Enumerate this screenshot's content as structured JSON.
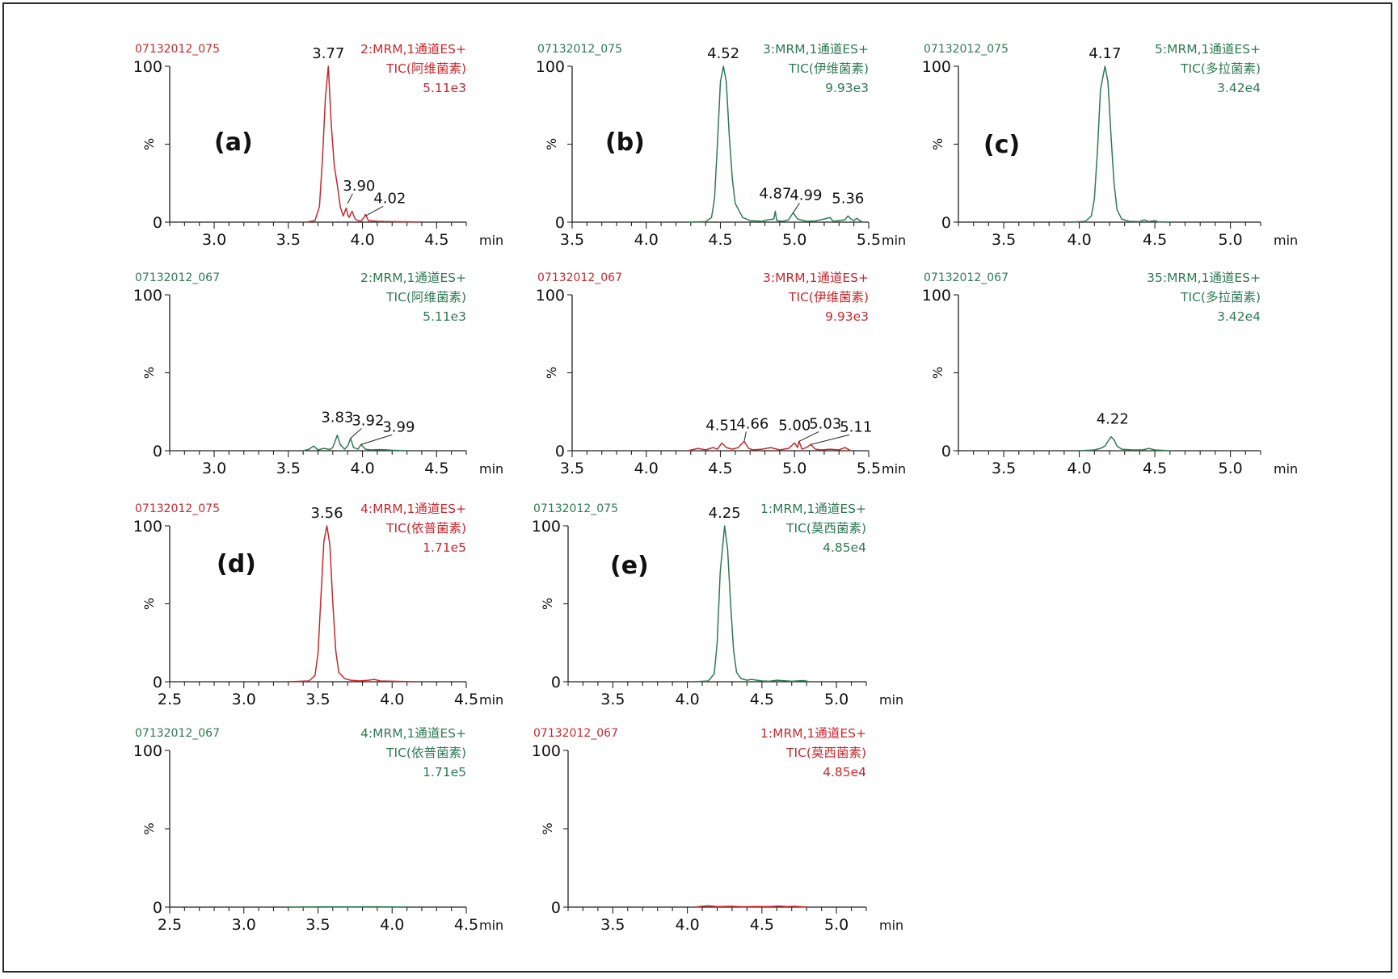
{
  "colors": {
    "red": "#c8282d",
    "green": "#2e7a55"
  },
  "chart_data": [
    {
      "type": "line",
      "id": "a-top",
      "color": "red",
      "sample": "07132012_075",
      "header": [
        "2:MRM,1通道ES+",
        "TIC(阿维菌素)",
        "5.11e3"
      ],
      "letter": "(a)",
      "xlim": [
        2.7,
        4.7
      ],
      "ylim": [
        0,
        100
      ],
      "xticks": [
        "3.0",
        "3.5",
        "4.0",
        "4.5"
      ],
      "xunit": "min",
      "yticks": [
        "0",
        "%",
        "100"
      ],
      "peaks": [
        {
          "label": "3.77",
          "x": 3.77,
          "y": 100
        },
        {
          "label": "3.90",
          "x": 3.9,
          "y": 12
        },
        {
          "label": "4.02",
          "x": 4.02,
          "y": 4
        }
      ],
      "x": [
        3.62,
        3.68,
        3.71,
        3.73,
        3.75,
        3.77,
        3.79,
        3.81,
        3.83,
        3.85,
        3.87,
        3.89,
        3.9,
        3.91,
        3.93,
        3.95,
        3.97,
        3.99,
        4.01,
        4.02,
        4.04,
        4.1,
        4.2,
        4.3,
        4.38
      ],
      "y": [
        0,
        1,
        10,
        40,
        80,
        100,
        62,
        36,
        24,
        10,
        4,
        9,
        5,
        3,
        7,
        2,
        1,
        0.5,
        3,
        5,
        1,
        0.5,
        0.3,
        0.2,
        0
      ]
    },
    {
      "type": "line",
      "id": "b-top",
      "color": "green",
      "sample": "07132012_075",
      "header": [
        "3:MRM,1通道ES+",
        "TIC(伊维菌素)",
        "9.93e3"
      ],
      "letter": "(b)",
      "xlim": [
        3.5,
        5.5
      ],
      "ylim": [
        0,
        100
      ],
      "xticks": [
        "3.5",
        "4.0",
        "4.5",
        "5.0",
        "5.5"
      ],
      "xunit": "min",
      "yticks": [
        "0",
        "%",
        "100"
      ],
      "peaks": [
        {
          "label": "4.52",
          "x": 4.52,
          "y": 100
        },
        {
          "label": "4.87",
          "x": 4.87,
          "y": 7
        },
        {
          "label": "4.99",
          "x": 4.99,
          "y": 6
        },
        {
          "label": "5.36",
          "x": 5.36,
          "y": 4
        }
      ],
      "x": [
        4.28,
        4.4,
        4.44,
        4.46,
        4.48,
        4.5,
        4.52,
        4.54,
        4.56,
        4.58,
        4.6,
        4.65,
        4.7,
        4.78,
        4.82,
        4.86,
        4.87,
        4.88,
        4.92,
        4.96,
        4.99,
        5.02,
        5.08,
        5.14,
        5.2,
        5.24,
        5.26,
        5.3,
        5.34,
        5.36,
        5.38,
        5.4,
        5.42,
        5.44,
        5.46
      ],
      "y": [
        0,
        0.3,
        3,
        15,
        50,
        90,
        100,
        90,
        55,
        28,
        12,
        3,
        1,
        0.5,
        1.5,
        2,
        7,
        1,
        0.5,
        1.5,
        6,
        2,
        0.5,
        0.8,
        2,
        3,
        0.5,
        1,
        1.5,
        4,
        2,
        1,
        2.5,
        1,
        0
      ]
    },
    {
      "type": "line",
      "id": "c-top",
      "color": "green",
      "sample": "07132012_075",
      "header": [
        "5:MRM,1通道ES+",
        "TIC(多拉菌素)",
        "3.42e4"
      ],
      "letter": "(c)",
      "xlim": [
        3.2,
        5.2
      ],
      "ylim": [
        0,
        100
      ],
      "xticks": [
        "3.5",
        "4.0",
        "4.5",
        "5.0"
      ],
      "xunit": "min",
      "yticks": [
        "0",
        "%",
        "100"
      ],
      "peaks": [
        {
          "label": "4.17",
          "x": 4.17,
          "y": 100
        }
      ],
      "x": [
        3.95,
        4.04,
        4.08,
        4.1,
        4.12,
        4.14,
        4.17,
        4.19,
        4.21,
        4.23,
        4.25,
        4.28,
        4.33,
        4.4,
        4.43,
        4.46,
        4.5,
        4.52,
        4.6
      ],
      "y": [
        0,
        0.5,
        4,
        15,
        45,
        85,
        100,
        90,
        55,
        25,
        8,
        2,
        0.5,
        0.3,
        1.5,
        0.3,
        1,
        0.2,
        0
      ]
    },
    {
      "type": "line",
      "id": "a-bottom",
      "color": "green",
      "sample": "07132012_067",
      "header": [
        "2:MRM,1通道ES+",
        "TIC(阿维菌素)",
        "5.11e3"
      ],
      "letter": "",
      "xlim": [
        2.7,
        4.7
      ],
      "ylim": [
        0,
        100
      ],
      "xticks": [
        "3.0",
        "3.5",
        "4.0",
        "4.5"
      ],
      "xunit": "min",
      "yticks": [
        "0",
        "%",
        "100"
      ],
      "peaks": [
        {
          "label": "3.83",
          "x": 3.83,
          "y": 10
        },
        {
          "label": "3.92",
          "x": 3.92,
          "y": 8
        },
        {
          "label": "3.99",
          "x": 3.99,
          "y": 4
        }
      ],
      "x": [
        3.6,
        3.64,
        3.67,
        3.7,
        3.74,
        3.78,
        3.8,
        3.83,
        3.85,
        3.88,
        3.9,
        3.92,
        3.94,
        3.97,
        3.99,
        4.02,
        4.06,
        4.12,
        4.2,
        4.3
      ],
      "y": [
        0,
        1,
        3,
        0.5,
        1.5,
        0.8,
        2,
        10,
        4,
        1,
        3,
        8,
        2,
        1,
        4,
        1,
        0.5,
        0.8,
        0.3,
        0
      ]
    },
    {
      "type": "line",
      "id": "b-bottom",
      "color": "red",
      "sample": "07132012_067",
      "header": [
        "3:MRM,1通道ES+",
        "TIC(伊维菌素)",
        "9.93e3"
      ],
      "letter": "",
      "xlim": [
        3.5,
        5.5
      ],
      "ylim": [
        0,
        100
      ],
      "xticks": [
        "3.5",
        "4.0",
        "4.5",
        "5.0",
        "5.5"
      ],
      "xunit": "min",
      "yticks": [
        "0",
        "%",
        "100"
      ],
      "peaks": [
        {
          "label": "4.51",
          "x": 4.51,
          "y": 5
        },
        {
          "label": "4.66",
          "x": 4.66,
          "y": 6
        },
        {
          "label": "5.00",
          "x": 5.0,
          "y": 5
        },
        {
          "label": "5.03",
          "x": 5.03,
          "y": 6
        },
        {
          "label": "5.11",
          "x": 5.11,
          "y": 4
        }
      ],
      "x": [
        4.28,
        4.35,
        4.4,
        4.45,
        4.48,
        4.51,
        4.54,
        4.58,
        4.62,
        4.66,
        4.69,
        4.72,
        4.78,
        4.84,
        4.9,
        4.96,
        5.0,
        5.02,
        5.03,
        5.05,
        5.08,
        5.11,
        5.14,
        5.18,
        5.24,
        5.3,
        5.34,
        5.38
      ],
      "y": [
        0,
        1.5,
        0.5,
        2,
        1,
        5,
        2,
        1,
        2,
        6,
        1.5,
        0.5,
        1,
        2,
        0.5,
        1.5,
        5,
        2,
        6,
        1,
        2,
        4,
        1,
        0.5,
        1,
        0.5,
        2,
        0
      ]
    },
    {
      "type": "line",
      "id": "c-bottom",
      "color": "green",
      "sample": "07132012_067",
      "header": [
        "35:MRM,1通道ES+",
        "TIC(多拉菌素)",
        "3.42e4"
      ],
      "letter": "",
      "xlim": [
        3.2,
        5.2
      ],
      "ylim": [
        0,
        100
      ],
      "xticks": [
        "3.5",
        "4.0",
        "4.5",
        "5.0"
      ],
      "xunit": "min",
      "yticks": [
        "0",
        "%",
        "100"
      ],
      "peaks": [
        {
          "label": "4.22",
          "x": 4.22,
          "y": 9
        }
      ],
      "x": [
        4.0,
        4.1,
        4.14,
        4.17,
        4.19,
        4.21,
        4.23,
        4.25,
        4.28,
        4.35,
        4.42,
        4.46,
        4.5,
        4.6
      ],
      "y": [
        0,
        0.5,
        1.5,
        3,
        6,
        9,
        7,
        3,
        1,
        0.5,
        0.5,
        1.5,
        0.5,
        0
      ]
    },
    {
      "type": "line",
      "id": "d-top",
      "color": "red",
      "sample": "07132012_075",
      "header": [
        "4:MRM,1通道ES+",
        "TIC(依普菌素)",
        "1.71e5"
      ],
      "letter": "(d)",
      "xlim": [
        2.5,
        4.5
      ],
      "ylim": [
        0,
        100
      ],
      "xticks": [
        "2.5",
        "3.0",
        "3.5",
        "4.0",
        "4.5"
      ],
      "xunit": "min",
      "yticks": [
        "0",
        "%",
        "100"
      ],
      "peaks": [
        {
          "label": "3.56",
          "x": 3.56,
          "y": 100
        }
      ],
      "x": [
        3.3,
        3.44,
        3.48,
        3.5,
        3.52,
        3.54,
        3.56,
        3.58,
        3.6,
        3.62,
        3.64,
        3.68,
        3.72,
        3.78,
        3.84,
        3.88,
        3.92,
        4.0,
        4.15
      ],
      "y": [
        0,
        0.5,
        4,
        18,
        55,
        90,
        100,
        88,
        50,
        20,
        6,
        2,
        1,
        0.5,
        1,
        1.5,
        0.5,
        0.3,
        0
      ]
    },
    {
      "type": "line",
      "id": "e-top",
      "color": "green",
      "sample": "07132012_075",
      "header": [
        "1:MRM,1通道ES+",
        "TIC(莫西菌素)",
        "4.85e4"
      ],
      "letter": "(e)",
      "xlim": [
        3.2,
        5.2
      ],
      "ylim": [
        0,
        100
      ],
      "xticks": [
        "3.5",
        "4.0",
        "4.5",
        "5.0"
      ],
      "xunit": "min",
      "yticks": [
        "0",
        "%",
        "100"
      ],
      "peaks": [
        {
          "label": "4.25",
          "x": 4.25,
          "y": 100
        }
      ],
      "x": [
        4.05,
        4.14,
        4.18,
        4.2,
        4.22,
        4.25,
        4.27,
        4.29,
        4.31,
        4.33,
        4.36,
        4.4,
        4.43,
        4.5,
        4.55,
        4.6,
        4.7,
        4.78,
        4.82
      ],
      "y": [
        0,
        0.5,
        5,
        25,
        70,
        100,
        85,
        50,
        20,
        6,
        2,
        1,
        1.5,
        0.5,
        0.3,
        1,
        0.3,
        0.8,
        0
      ]
    },
    {
      "type": "line",
      "id": "d-bottom",
      "color": "green",
      "sample": "07132012_067",
      "header": [
        "4:MRM,1通道ES+",
        "TIC(依普菌素)",
        "1.71e5"
      ],
      "letter": "",
      "xlim": [
        2.5,
        4.5
      ],
      "ylim": [
        0,
        100
      ],
      "xticks": [
        "2.5",
        "3.0",
        "3.5",
        "4.0",
        "4.5"
      ],
      "xunit": "min",
      "yticks": [
        "0",
        "%",
        "100"
      ],
      "peaks": [],
      "x": [
        3.3,
        3.5,
        3.7,
        3.9,
        4.1
      ],
      "y": [
        0,
        0.2,
        0.1,
        0.2,
        0
      ]
    },
    {
      "type": "line",
      "id": "e-bottom",
      "color": "red",
      "sample": "07132012_067",
      "header": [
        "1:MRM,1通道ES+",
        "TIC(莫西菌素)",
        "4.85e4"
      ],
      "letter": "",
      "xlim": [
        3.2,
        5.2
      ],
      "ylim": [
        0,
        100
      ],
      "xticks": [
        "3.5",
        "4.0",
        "4.5",
        "5.0"
      ],
      "xunit": "min",
      "yticks": [
        "0",
        "%",
        "100"
      ],
      "peaks": [],
      "x": [
        4.05,
        4.1,
        4.14,
        4.2,
        4.3,
        4.38,
        4.46,
        4.54,
        4.62,
        4.66,
        4.72,
        4.8
      ],
      "y": [
        0,
        0.5,
        0.8,
        0.3,
        0.5,
        0.2,
        0.4,
        0.3,
        0.6,
        0.3,
        0.5,
        0
      ]
    }
  ]
}
